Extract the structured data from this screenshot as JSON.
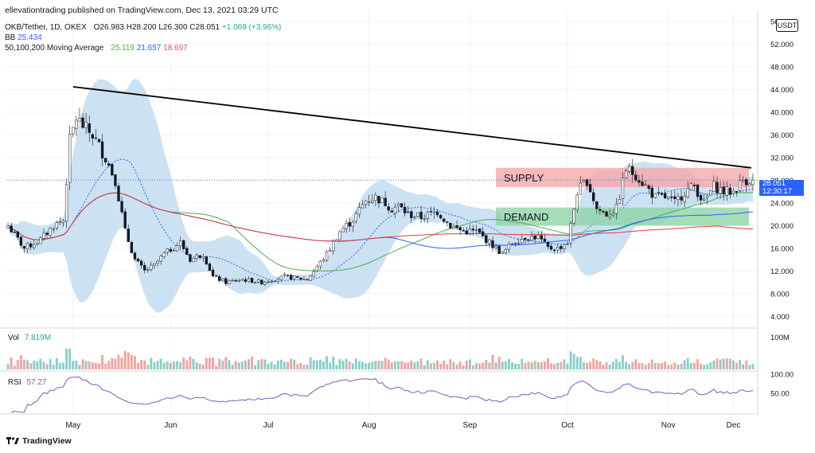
{
  "header": {
    "published": "ellevationtrading published on TradingView.com, Dec 13, 2021 03:29 UTC",
    "symbol": "OKB/Tether, 1D, OKEX",
    "ohlc": {
      "o": "O26.983",
      "h": "H28.200",
      "l": "L26.300",
      "c": "C28.051",
      "chg": "+1.069 (+3.96%)"
    },
    "bb_label": "BB",
    "bb_value": "25.434",
    "ma_label": "50,100,200 Moving Average",
    "ma_values": [
      "25.119",
      "21.657",
      "18.697"
    ]
  },
  "currency_button": "USDT",
  "price_tag": {
    "price": "28.051",
    "countdown": "12:30:17"
  },
  "volume": {
    "label": "Vol",
    "value": "7.819M"
  },
  "rsi": {
    "label": "RSI",
    "value": "57.27"
  },
  "branding": "TradingView",
  "colors": {
    "up": "#26a69a",
    "down": "#ef5350",
    "bb_fill": "#bbd8ee",
    "bb_mid": "#2962ff",
    "ma50": "#4caf50",
    "ma100": "#2962ff",
    "ma200": "#e53935",
    "rsi": "#7e57c2",
    "supply": "#f4a9a9",
    "demand": "#8fd5a6",
    "trendline": "#000000"
  },
  "chart_data": [
    {
      "type": "candlestick",
      "title": "OKB/Tether, 1D, OKEX",
      "x_ticks": [
        "May",
        "Jun",
        "Jul",
        "Aug",
        "Sep",
        "Oct",
        "Nov",
        "Dec"
      ],
      "y_ticks": [
        "4.000",
        "8.000",
        "12.000",
        "16.000",
        "20.000",
        "24.000",
        "28.000",
        "32.000",
        "36.000",
        "40.000",
        "44.000",
        "48.000",
        "52.000",
        "56.000"
      ],
      "ylim": [
        2.5,
        57
      ],
      "price_anchors": {
        "day": [
          0,
          5,
          10,
          14,
          17,
          19,
          21,
          24,
          26,
          28,
          30,
          33,
          36,
          39,
          42,
          45,
          48,
          53,
          56,
          60,
          63,
          67,
          72,
          78,
          85,
          92,
          98,
          102,
          106,
          110,
          113,
          116,
          118,
          120,
          123,
          127,
          132,
          136,
          140,
          144,
          148,
          152,
          155,
          159,
          163,
          166,
          169,
          172,
          175,
          178,
          181,
          184,
          187,
          190,
          193,
          196,
          199,
          202,
          205,
          208,
          211,
          214,
          217,
          220,
          223,
          226
        ],
        "close": [
          20,
          16,
          17.5,
          20,
          21,
          35,
          39,
          37,
          36,
          34,
          32,
          28,
          19,
          14,
          12,
          13,
          15,
          17,
          14,
          15,
          11,
          10,
          10.5,
          10,
          11,
          10.5,
          15,
          19,
          21,
          24.5,
          25,
          24,
          23,
          23.5,
          22,
          21.5,
          22.5,
          20,
          19,
          19,
          17,
          15,
          17,
          18,
          18,
          16,
          16,
          17,
          26,
          28,
          23,
          22,
          23,
          30,
          29,
          27,
          25,
          25,
          24,
          26,
          27,
          24,
          27,
          26,
          26,
          28.05
        ]
      },
      "annotations": {
        "supply_zone": [
          26.8,
          30.2
        ],
        "demand_zone": [
          20,
          23.2
        ],
        "trendline": {
          "start": {
            "month": "May",
            "price": 44.5
          },
          "end": {
            "month": "Dec",
            "price": 30.2
          }
        },
        "zone_labels": [
          "SUPPLY",
          "DEMAND"
        ]
      },
      "indicators": [
        "Bollinger Bands",
        "MA 50",
        "MA 100",
        "MA 200"
      ]
    },
    {
      "type": "bar",
      "title": "Vol",
      "y_ticks": [
        "100M"
      ],
      "ylim": [
        0,
        100
      ]
    },
    {
      "type": "line",
      "title": "RSI",
      "y_ticks": [
        "100.00",
        "50.00"
      ],
      "ylim": [
        0,
        100
      ],
      "value": 57.27
    }
  ]
}
